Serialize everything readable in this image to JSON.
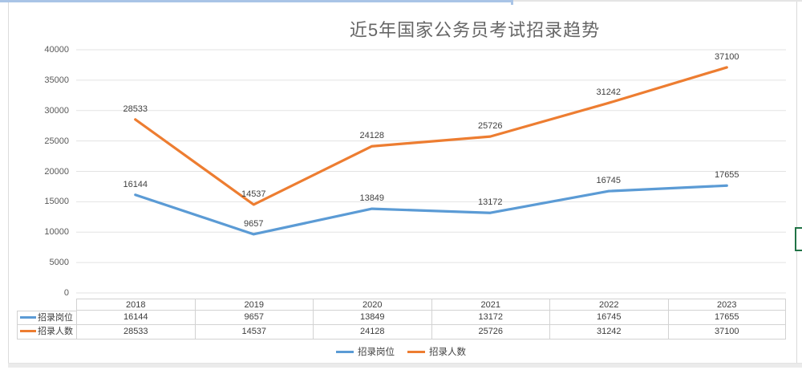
{
  "frame": {
    "top_accent_color": "#a9c4e6",
    "window_line_color": "#dcdcdc",
    "bottom_bar_color": "#ebebeb",
    "selection_border_color": "#217346"
  },
  "chart_data": {
    "type": "line",
    "title": "近5年国家公务员考试招录趋势",
    "categories": [
      "2018",
      "2019",
      "2020",
      "2021",
      "2022",
      "2023"
    ],
    "series": [
      {
        "name": "招录岗位",
        "color": "#5b9bd5",
        "values": [
          16144,
          9657,
          13849,
          13172,
          16745,
          17655
        ]
      },
      {
        "name": "招录人数",
        "color": "#ed7d31",
        "values": [
          28533,
          14537,
          24128,
          25726,
          31242,
          37100
        ]
      }
    ],
    "ylim": [
      0,
      40000
    ],
    "y_ticks": [
      0,
      5000,
      10000,
      15000,
      20000,
      25000,
      30000,
      35000,
      40000
    ],
    "grid": "horizontal",
    "gridline_color": "#e3e3e3",
    "data_labels": true,
    "legend_position": "bottom",
    "data_table": true
  }
}
